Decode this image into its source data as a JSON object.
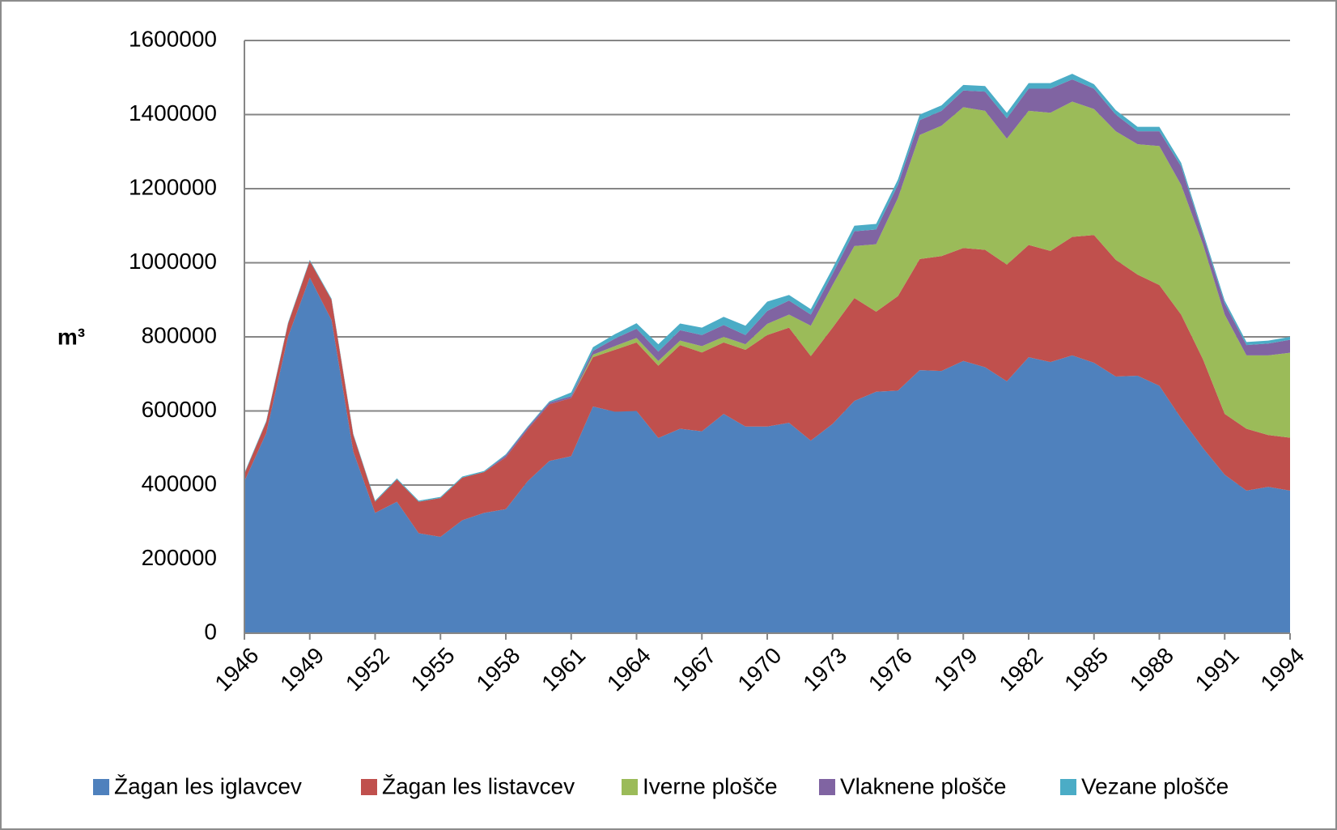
{
  "chart_data": {
    "type": "stacked_area",
    "y_label": "m³",
    "x": [
      1946,
      1947,
      1948,
      1949,
      1950,
      1951,
      1952,
      1953,
      1954,
      1955,
      1956,
      1957,
      1958,
      1959,
      1960,
      1961,
      1962,
      1963,
      1964,
      1965,
      1966,
      1967,
      1968,
      1969,
      1970,
      1971,
      1972,
      1973,
      1974,
      1975,
      1976,
      1977,
      1978,
      1979,
      1980,
      1981,
      1982,
      1983,
      1984,
      1985,
      1986,
      1987,
      1988,
      1989,
      1990,
      1991,
      1992,
      1993,
      1994
    ],
    "xlim": [
      1946,
      1994
    ],
    "xticks": [
      1946,
      1949,
      1952,
      1955,
      1958,
      1961,
      1964,
      1967,
      1970,
      1973,
      1976,
      1979,
      1982,
      1985,
      1988,
      1991,
      1994
    ],
    "ylim": [
      0,
      1600000
    ],
    "yticks": [
      0,
      200000,
      400000,
      600000,
      800000,
      1000000,
      1200000,
      1400000,
      1600000
    ],
    "grid": true,
    "legend": "bottom",
    "series": [
      {
        "name": "Žagan les iglavcev",
        "color": "#4f81bd",
        "values": [
          410000,
          540000,
          800000,
          960000,
          845000,
          490000,
          325000,
          355000,
          270000,
          260000,
          305000,
          325000,
          335000,
          410000,
          465000,
          478000,
          612000,
          598000,
          600000,
          527000,
          552000,
          545000,
          592000,
          558000,
          558000,
          568000,
          520000,
          565000,
          627000,
          652000,
          655000,
          710000,
          708000,
          735000,
          718000,
          680000,
          745000,
          732000,
          750000,
          730000,
          693000,
          695000,
          668000,
          580000,
          500000,
          428000,
          385000,
          395000,
          385000
        ]
      },
      {
        "name": "Žagan les listavcev",
        "color": "#c0504d",
        "values": [
          20000,
          30000,
          35000,
          45000,
          55000,
          45000,
          30000,
          60000,
          85000,
          105000,
          115000,
          110000,
          140000,
          140000,
          153000,
          157000,
          133000,
          167000,
          185000,
          195000,
          226000,
          213000,
          193000,
          207000,
          247000,
          257000,
          228000,
          260000,
          278000,
          216000,
          255000,
          300000,
          310000,
          305000,
          317000,
          315000,
          303000,
          300000,
          320000,
          345000,
          315000,
          273000,
          272000,
          280000,
          240000,
          164000,
          167000,
          140000,
          143000
        ]
      },
      {
        "name": "Iverne plošče",
        "color": "#9bbb59",
        "values": [
          0,
          0,
          0,
          0,
          0,
          0,
          0,
          0,
          0,
          0,
          0,
          0,
          0,
          0,
          0,
          0,
          7000,
          10000,
          12000,
          13000,
          12000,
          17000,
          15000,
          15000,
          30000,
          35000,
          82000,
          115000,
          140000,
          182000,
          265000,
          335000,
          352000,
          380000,
          375000,
          340000,
          362000,
          373000,
          365000,
          340000,
          347000,
          352000,
          375000,
          350000,
          310000,
          268000,
          198000,
          215000,
          229000
        ]
      },
      {
        "name": "Vlaknene plošče",
        "color": "#8064a2",
        "values": [
          0,
          0,
          0,
          0,
          0,
          0,
          0,
          0,
          0,
          0,
          0,
          0,
          5000,
          5000,
          5000,
          5000,
          10000,
          20000,
          25000,
          25000,
          28000,
          30000,
          32000,
          25000,
          35000,
          38000,
          30000,
          30000,
          40000,
          40000,
          35000,
          40000,
          40000,
          45000,
          52000,
          55000,
          60000,
          65000,
          60000,
          55000,
          45000,
          35000,
          40000,
          50000,
          25000,
          30000,
          28000,
          32000,
          35000
        ]
      },
      {
        "name": "Vezane plošče",
        "color": "#4bacc6",
        "values": [
          3000,
          3000,
          3000,
          3000,
          3000,
          3000,
          3000,
          3000,
          3000,
          3000,
          3000,
          3000,
          3000,
          3000,
          3000,
          10000,
          10000,
          12000,
          15000,
          20000,
          18000,
          20000,
          22000,
          25000,
          25000,
          15000,
          15000,
          15000,
          15000,
          15000,
          15000,
          15000,
          15000,
          15000,
          15000,
          15000,
          15000,
          15000,
          15000,
          12000,
          12000,
          12000,
          12000,
          10000,
          8000,
          8000,
          8000,
          8000,
          8000
        ]
      }
    ]
  }
}
